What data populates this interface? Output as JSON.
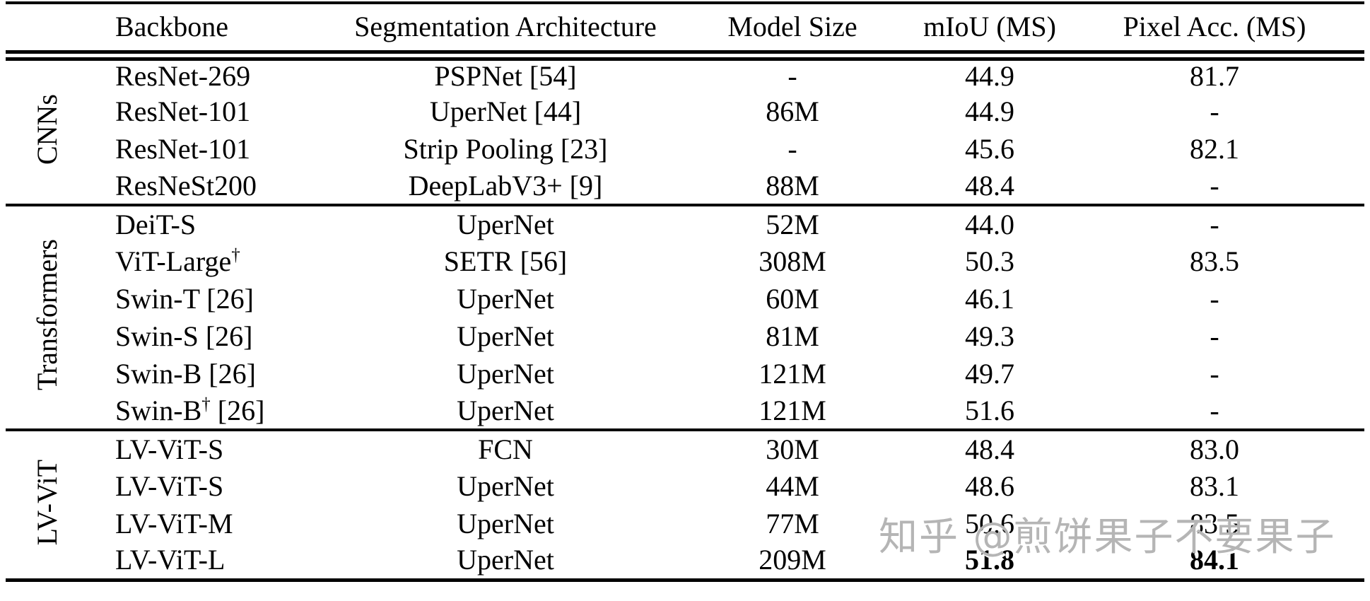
{
  "table": {
    "headers": {
      "backbone": "Backbone",
      "architecture": "Segmentation Architecture",
      "model_size": "Model Size",
      "miou": "mIoU (MS)",
      "pixel_acc": "Pixel Acc. (MS)"
    },
    "groups": [
      {
        "label": "CNNs",
        "rows": [
          {
            "backbone": "ResNet-269",
            "backbone_sup": "",
            "backbone_rest": "",
            "architecture": "PSPNet [54]",
            "model_size": "-",
            "miou": "44.9",
            "pixel_acc": "81.7",
            "miou_bold": false,
            "pixel_acc_bold": false
          },
          {
            "backbone": "ResNet-101",
            "backbone_sup": "",
            "backbone_rest": "",
            "architecture": "UperNet [44]",
            "model_size": "86M",
            "miou": "44.9",
            "pixel_acc": "-",
            "miou_bold": false,
            "pixel_acc_bold": false
          },
          {
            "backbone": "ResNet-101",
            "backbone_sup": "",
            "backbone_rest": "",
            "architecture": "Strip Pooling [23]",
            "model_size": "-",
            "miou": "45.6",
            "pixel_acc": "82.1",
            "miou_bold": false,
            "pixel_acc_bold": false
          },
          {
            "backbone": "ResNeSt200",
            "backbone_sup": "",
            "backbone_rest": "",
            "architecture": "DeepLabV3+ [9]",
            "model_size": "88M",
            "miou": "48.4",
            "pixel_acc": "-",
            "miou_bold": false,
            "pixel_acc_bold": false
          }
        ]
      },
      {
        "label": "Transformers",
        "rows": [
          {
            "backbone": "DeiT-S",
            "backbone_sup": "",
            "backbone_rest": "",
            "architecture": "UperNet",
            "model_size": "52M",
            "miou": "44.0",
            "pixel_acc": "-",
            "miou_bold": false,
            "pixel_acc_bold": false
          },
          {
            "backbone": "ViT-Large",
            "backbone_sup": "†",
            "backbone_rest": "",
            "architecture": "SETR [56]",
            "model_size": "308M",
            "miou": "50.3",
            "pixel_acc": "83.5",
            "miou_bold": false,
            "pixel_acc_bold": false
          },
          {
            "backbone": "Swin-T",
            "backbone_sup": "",
            "backbone_rest": " [26]",
            "architecture": "UperNet",
            "model_size": "60M",
            "miou": "46.1",
            "pixel_acc": "-",
            "miou_bold": false,
            "pixel_acc_bold": false
          },
          {
            "backbone": "Swin-S",
            "backbone_sup": "",
            "backbone_rest": " [26]",
            "architecture": "UperNet",
            "model_size": "81M",
            "miou": "49.3",
            "pixel_acc": "-",
            "miou_bold": false,
            "pixel_acc_bold": false
          },
          {
            "backbone": "Swin-B",
            "backbone_sup": "",
            "backbone_rest": " [26]",
            "architecture": "UperNet",
            "model_size": "121M",
            "miou": "49.7",
            "pixel_acc": "-",
            "miou_bold": false,
            "pixel_acc_bold": false
          },
          {
            "backbone": "Swin-B",
            "backbone_sup": "†",
            "backbone_rest": " [26]",
            "architecture": "UperNet",
            "model_size": "121M",
            "miou": "51.6",
            "pixel_acc": "-",
            "miou_bold": false,
            "pixel_acc_bold": false
          }
        ]
      },
      {
        "label": "LV-ViT",
        "rows": [
          {
            "backbone": "LV-ViT-S",
            "backbone_sup": "",
            "backbone_rest": "",
            "architecture": "FCN",
            "model_size": "30M",
            "miou": "48.4",
            "pixel_acc": "83.0",
            "miou_bold": false,
            "pixel_acc_bold": false
          },
          {
            "backbone": "LV-ViT-S",
            "backbone_sup": "",
            "backbone_rest": "",
            "architecture": "UperNet",
            "model_size": "44M",
            "miou": "48.6",
            "pixel_acc": "83.1",
            "miou_bold": false,
            "pixel_acc_bold": false
          },
          {
            "backbone": "LV-ViT-M",
            "backbone_sup": "",
            "backbone_rest": "",
            "architecture": "UperNet",
            "model_size": "77M",
            "miou": "50.6",
            "pixel_acc": "83.5",
            "miou_bold": false,
            "pixel_acc_bold": false
          },
          {
            "backbone": "LV-ViT-L",
            "backbone_sup": "",
            "backbone_rest": "",
            "architecture": "UperNet",
            "model_size": "209M",
            "miou": "51.8",
            "pixel_acc": "84.1",
            "miou_bold": true,
            "pixel_acc_bold": true
          }
        ]
      }
    ]
  },
  "watermark": {
    "text": "知乎 @煎饼果子不要果子",
    "color": "#b5b5b5"
  },
  "colors": {
    "background": "#ffffff",
    "text": "#000000",
    "rule": "#000000"
  }
}
